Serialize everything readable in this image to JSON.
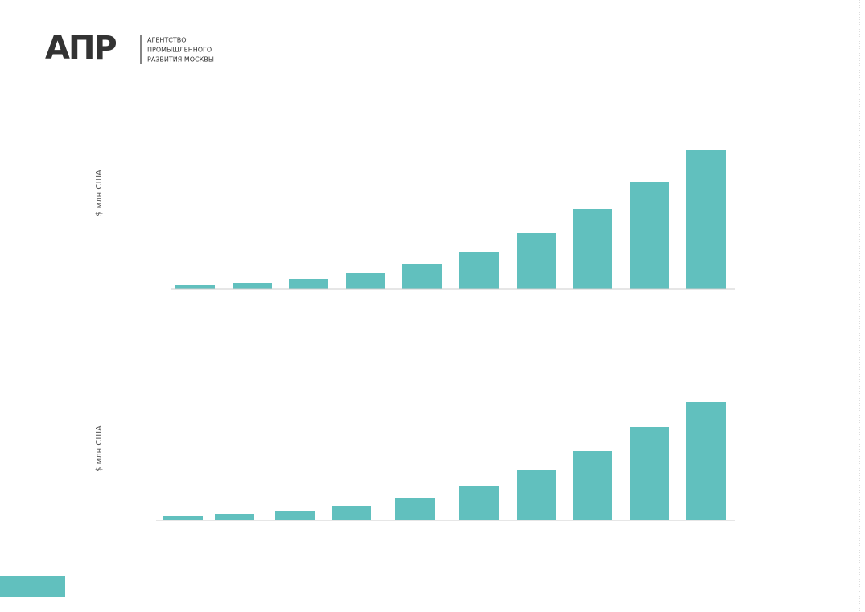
{
  "header": {
    "logo": "АПР",
    "lines": [
      "АГЕНТСТВО",
      "ПРОМЫШЛЕННОГО",
      "РАЗВИТИЯ МОСКВЫ"
    ]
  },
  "chart_data": [
    {
      "type": "bar",
      "y_label": "$ млн США",
      "color": "#61c0be",
      "ylim": [
        0,
        180
      ],
      "values": [
        4,
        7,
        12,
        19,
        31,
        46,
        69,
        99,
        133,
        172
      ]
    },
    {
      "type": "bar",
      "y_label": "$ млн США",
      "color": "#61c0be",
      "ylim": [
        0,
        180
      ],
      "values": [
        5,
        8,
        12,
        18,
        28,
        43,
        62,
        86,
        116,
        147
      ]
    }
  ]
}
